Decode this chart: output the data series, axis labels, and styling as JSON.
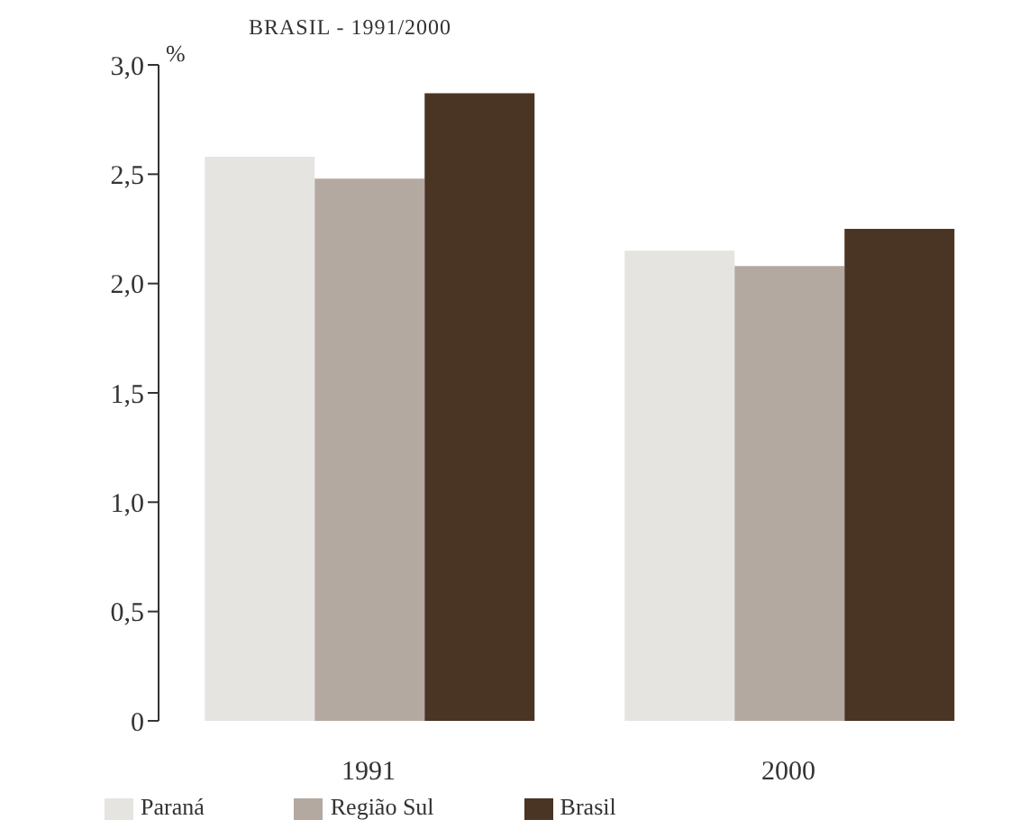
{
  "chart_data": {
    "type": "bar",
    "title": "BRASIL - 1991/2000",
    "ylabel": "%",
    "categories": [
      "1991",
      "2000"
    ],
    "series": [
      {
        "name": "Paraná",
        "color": "#e6e4e0",
        "values": [
          2.58,
          2.15
        ]
      },
      {
        "name": "Região Sul",
        "color": "#b3a9a1",
        "values": [
          2.48,
          2.08
        ]
      },
      {
        "name": "Brasil",
        "color": "#4a3424",
        "values": [
          2.87,
          2.25
        ]
      }
    ],
    "ylim": [
      0,
      3
    ],
    "yticks": [
      0,
      {
        "value": 0.5,
        "label": "0,5"
      },
      {
        "value": 1,
        "label": "1,0"
      },
      {
        "value": 1.5,
        "label": "1,5"
      },
      {
        "value": 2,
        "label": "2,0"
      },
      {
        "value": 2.5,
        "label": "2,5"
      },
      {
        "value": 3,
        "label": "3,0"
      }
    ],
    "grid": false,
    "legend": "bottom"
  }
}
